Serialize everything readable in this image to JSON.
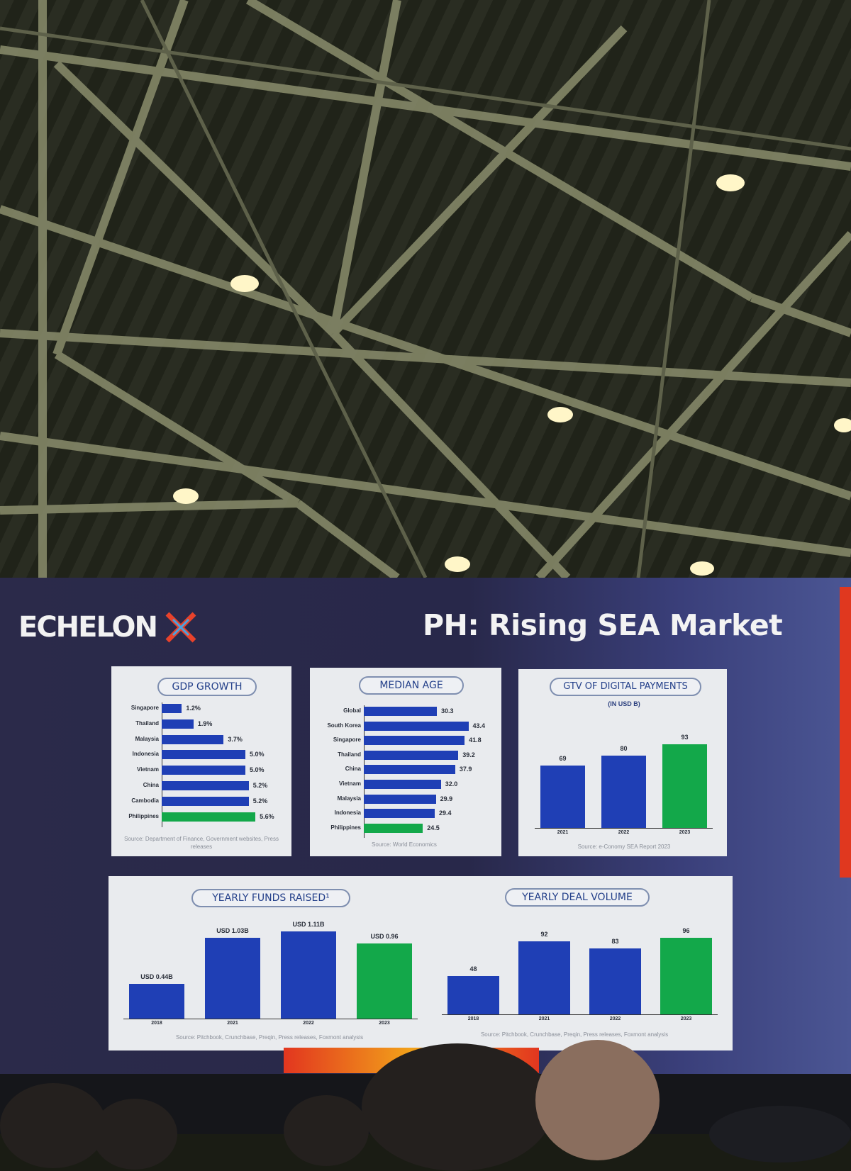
{
  "slide": {
    "logo": "ECHELON",
    "title": "PH: Rising SEA Market"
  },
  "colors": {
    "bar_blue": "#1f3fb5",
    "bar_green": "#13a84a",
    "panel": "#e9ebee"
  },
  "chart_data": [
    {
      "type": "bar",
      "orientation": "horizontal",
      "title": "GDP GROWTH",
      "categories": [
        "Singapore",
        "Thailand",
        "Malaysia",
        "Indonesia",
        "Vietnam",
        "China",
        "Cambodia",
        "Philippines"
      ],
      "values": [
        1.2,
        1.9,
        3.7,
        5.0,
        5.0,
        5.2,
        5.2,
        5.6
      ],
      "value_labels": [
        "1.2%",
        "1.9%",
        "3.7%",
        "5.0%",
        "5.0%",
        "5.2%",
        "5.2%",
        "5.6%"
      ],
      "highlight": "Philippines",
      "source": "Source: Department of Finance, Government websites, Press releases"
    },
    {
      "type": "bar",
      "orientation": "horizontal",
      "title": "MEDIAN AGE",
      "categories": [
        "Global",
        "South Korea",
        "Singapore",
        "Thailand",
        "China",
        "Vietnam",
        "Malaysia",
        "Indonesia",
        "Philippines"
      ],
      "values": [
        30.3,
        43.4,
        41.8,
        39.2,
        37.9,
        32.0,
        29.9,
        29.4,
        24.5
      ],
      "value_labels": [
        "30.3",
        "43.4",
        "41.8",
        "39.2",
        "37.9",
        "32.0",
        "29.9",
        "29.4",
        "24.5"
      ],
      "highlight": "Philippines",
      "source": "Source: World Economics"
    },
    {
      "type": "bar",
      "title": "GTV OF DIGITAL PAYMENTS",
      "subtitle": "(IN USD B)",
      "categories": [
        "2021",
        "2022",
        "2023"
      ],
      "values": [
        69,
        80,
        93
      ],
      "value_labels": [
        "69",
        "80",
        "93"
      ],
      "highlight": "2023",
      "source": "Source: e-Conomy SEA Report 2023"
    },
    {
      "type": "bar",
      "title": "YEARLY FUNDS RAISED¹",
      "categories": [
        "2018",
        "2021",
        "2022",
        "2023"
      ],
      "values": [
        0.44,
        1.03,
        1.11,
        0.96
      ],
      "value_labels": [
        "USD 0.44B",
        "USD 1.03B",
        "USD 1.11B",
        "USD 0.96"
      ],
      "highlight": "2023",
      "source": "Source: Pitchbook, Crunchbase, Preqin, Press releases, Foxmont analysis"
    },
    {
      "type": "bar",
      "title": "YEARLY DEAL VOLUME",
      "categories": [
        "2018",
        "2021",
        "2022",
        "2023"
      ],
      "values": [
        48,
        92,
        83,
        96
      ],
      "value_labels": [
        "48",
        "92",
        "83",
        "96"
      ],
      "highlight": "2023",
      "source": "Source: Pitchbook, Crunchbase, Preqin, Press releases, Foxmont analysis"
    }
  ]
}
